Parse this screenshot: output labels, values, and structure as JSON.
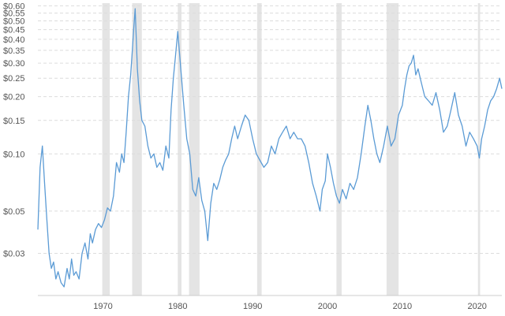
{
  "chart_data": {
    "type": "line",
    "title": "",
    "xlabel": "",
    "ylabel": "",
    "y_scale": "log",
    "x_range": [
      1961.3,
      2023.3
    ],
    "y_range": [
      0.018,
      0.62
    ],
    "grid": "horizontal dashed",
    "legend": "none",
    "line_color": "#5b9bd5",
    "recession_color": "#e4e4e4",
    "y_ticks": [
      {
        "value": 0.03,
        "label": "$0.03"
      },
      {
        "value": 0.05,
        "label": "$0.05"
      },
      {
        "value": 0.1,
        "label": "$0.10"
      },
      {
        "value": 0.15,
        "label": "$0.15"
      },
      {
        "value": 0.2,
        "label": "$0.20"
      },
      {
        "value": 0.25,
        "label": "$0.25"
      },
      {
        "value": 0.3,
        "label": "$0.30"
      },
      {
        "value": 0.35,
        "label": "$0.35"
      },
      {
        "value": 0.4,
        "label": "$0.40"
      },
      {
        "value": 0.45,
        "label": "$0.45"
      },
      {
        "value": 0.5,
        "label": "$0.50"
      },
      {
        "value": 0.55,
        "label": "$0.55"
      },
      {
        "value": 0.6,
        "label": "$0.60"
      }
    ],
    "x_ticks": [
      {
        "value": 1970,
        "label": "1970"
      },
      {
        "value": 1980,
        "label": "1980"
      },
      {
        "value": 1990,
        "label": "1990"
      },
      {
        "value": 2000,
        "label": "2000"
      },
      {
        "value": 2010,
        "label": "2010"
      },
      {
        "value": 2020,
        "label": "2020"
      }
    ],
    "recessions": [
      [
        1969.9,
        1970.9
      ],
      [
        1973.9,
        1975.2
      ],
      [
        1980.0,
        1980.5
      ],
      [
        1981.5,
        1982.9
      ],
      [
        1990.6,
        1991.2
      ],
      [
        2001.2,
        2001.9
      ],
      [
        2007.9,
        2009.5
      ],
      [
        2020.1,
        2020.4
      ]
    ],
    "series": [
      {
        "x": [
          1961.3,
          1961.6,
          1961.9,
          1962.2,
          1962.5,
          1962.8,
          1963.1,
          1963.4,
          1963.7,
          1964.0,
          1964.4,
          1964.8,
          1965.2,
          1965.5,
          1965.8,
          1966.1,
          1966.4,
          1966.8,
          1967.2,
          1967.6,
          1968.0,
          1968.3,
          1968.6,
          1969.0,
          1969.4,
          1969.8,
          1970.2,
          1970.6,
          1971.0,
          1971.4,
          1971.8,
          1972.2,
          1972.5,
          1972.8,
          1973.1,
          1973.4,
          1973.7,
          1973.9,
          1974.1,
          1974.3,
          1974.6,
          1974.9,
          1975.2,
          1975.6,
          1976.0,
          1976.4,
          1976.8,
          1977.2,
          1977.6,
          1978.0,
          1978.4,
          1978.8,
          1979.1,
          1979.4,
          1979.7,
          1980.0,
          1980.4,
          1980.8,
          1981.2,
          1981.6,
          1982.0,
          1982.4,
          1982.8,
          1983.2,
          1983.6,
          1984.0,
          1984.4,
          1984.8,
          1985.2,
          1985.6,
          1986.0,
          1986.4,
          1986.8,
          1987.2,
          1987.6,
          1988.0,
          1988.5,
          1989.0,
          1989.5,
          1990.0,
          1990.5,
          1991.0,
          1991.5,
          1992.0,
          1992.5,
          1993.0,
          1993.5,
          1994.0,
          1994.5,
          1995.0,
          1995.5,
          1996.0,
          1996.5,
          1997.0,
          1997.5,
          1998.0,
          1998.5,
          1999.0,
          1999.3,
          1999.7,
          2000.0,
          2000.4,
          2000.8,
          2001.2,
          2001.6,
          2002.0,
          2002.5,
          2003.0,
          2003.5,
          2004.0,
          2004.5,
          2005.0,
          2005.4,
          2005.8,
          2006.2,
          2006.6,
          2007.0,
          2007.5,
          2008.0,
          2008.5,
          2009.0,
          2009.5,
          2010.0,
          2010.3,
          2010.6,
          2010.9,
          2011.2,
          2011.5,
          2011.8,
          2012.1,
          2012.5,
          2013.0,
          2013.5,
          2014.0,
          2014.5,
          2015.0,
          2015.5,
          2016.0,
          2016.5,
          2017.0,
          2017.5,
          2018.0,
          2018.5,
          2019.0,
          2019.5,
          2020.0,
          2020.3,
          2020.6,
          2021.0,
          2021.4,
          2021.8,
          2022.2,
          2022.6,
          2023.0,
          2023.3
        ],
        "y": [
          0.04,
          0.085,
          0.11,
          0.07,
          0.045,
          0.03,
          0.025,
          0.027,
          0.022,
          0.024,
          0.021,
          0.02,
          0.025,
          0.022,
          0.028,
          0.023,
          0.024,
          0.022,
          0.03,
          0.034,
          0.028,
          0.038,
          0.034,
          0.04,
          0.043,
          0.041,
          0.045,
          0.052,
          0.05,
          0.06,
          0.09,
          0.08,
          0.1,
          0.09,
          0.13,
          0.2,
          0.26,
          0.34,
          0.45,
          0.58,
          0.28,
          0.19,
          0.15,
          0.14,
          0.11,
          0.095,
          0.1,
          0.085,
          0.09,
          0.082,
          0.11,
          0.095,
          0.17,
          0.25,
          0.33,
          0.44,
          0.28,
          0.18,
          0.12,
          0.1,
          0.065,
          0.06,
          0.075,
          0.057,
          0.05,
          0.035,
          0.055,
          0.07,
          0.065,
          0.073,
          0.085,
          0.093,
          0.1,
          0.12,
          0.14,
          0.12,
          0.14,
          0.16,
          0.15,
          0.12,
          0.1,
          0.092,
          0.085,
          0.09,
          0.11,
          0.1,
          0.12,
          0.13,
          0.14,
          0.12,
          0.13,
          0.12,
          0.12,
          0.11,
          0.09,
          0.07,
          0.06,
          0.05,
          0.065,
          0.072,
          0.1,
          0.085,
          0.07,
          0.06,
          0.055,
          0.065,
          0.058,
          0.07,
          0.065,
          0.075,
          0.1,
          0.14,
          0.18,
          0.15,
          0.12,
          0.1,
          0.09,
          0.11,
          0.14,
          0.11,
          0.12,
          0.16,
          0.18,
          0.22,
          0.26,
          0.29,
          0.3,
          0.33,
          0.26,
          0.28,
          0.24,
          0.2,
          0.19,
          0.18,
          0.21,
          0.17,
          0.13,
          0.14,
          0.17,
          0.21,
          0.16,
          0.14,
          0.11,
          0.13,
          0.12,
          0.11,
          0.095,
          0.12,
          0.14,
          0.17,
          0.19,
          0.2,
          0.22,
          0.25,
          0.22
        ]
      }
    ]
  }
}
